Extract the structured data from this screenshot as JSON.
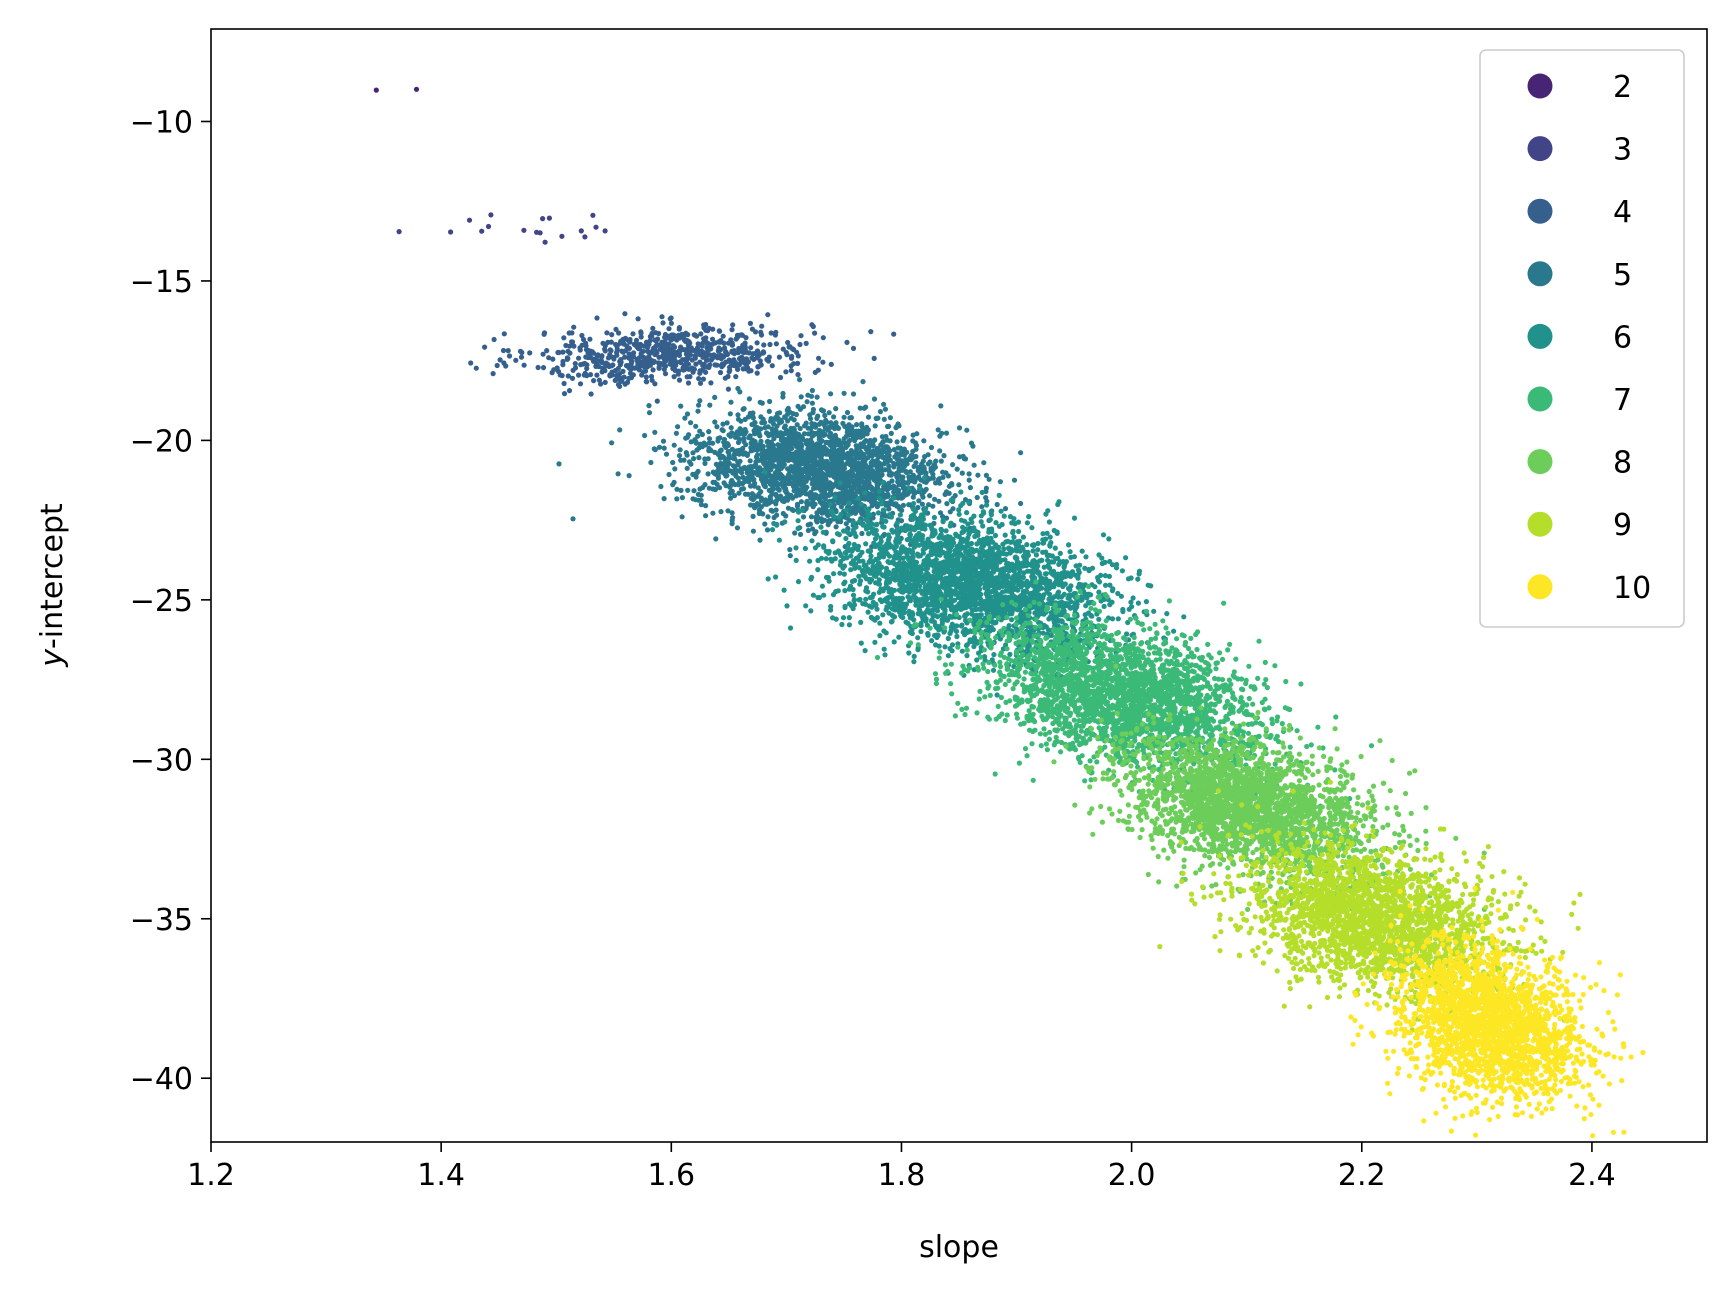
{
  "chart_data": {
    "type": "scatter",
    "title": "",
    "xlabel": "slope",
    "ylabel": "y-intercept",
    "ylabel_italic_part": "y",
    "ylabel_rest": "-intercept",
    "xlim": [
      1.2,
      2.5
    ],
    "ylim": [
      -42,
      -7.1
    ],
    "xticks": [
      1.2,
      1.4,
      1.6,
      1.8,
      2.0,
      2.2,
      2.4
    ],
    "xtick_labels": [
      "1.2",
      "1.4",
      "1.6",
      "1.8",
      "2.0",
      "2.2",
      "2.4"
    ],
    "yticks": [
      -10,
      -15,
      -20,
      -25,
      -30,
      -35,
      -40
    ],
    "ytick_labels": [
      "−10",
      "−15",
      "−20",
      "−25",
      "−30",
      "−35",
      "−40"
    ],
    "grid": false,
    "legend_position": "top-right",
    "series": [
      {
        "name": "2",
        "color": "#482475",
        "cluster": {
          "cx": 1.36,
          "cy": -8.6,
          "sx": 0.02,
          "sy": 0.4,
          "corr": 0,
          "n": 2
        }
      },
      {
        "name": "3",
        "color": "#414487",
        "cluster": {
          "cx": 1.47,
          "cy": -13.3,
          "sx": 0.06,
          "sy": 0.25,
          "corr": 0,
          "n": 18
        }
      },
      {
        "name": "4",
        "color": "#355f8d",
        "cluster": {
          "cx": 1.6,
          "cy": -17.3,
          "sx": 0.06,
          "sy": 0.45,
          "corr": 0.2,
          "n": 700
        }
      },
      {
        "name": "5",
        "color": "#2a788e",
        "cluster": {
          "cx": 1.73,
          "cy": -20.9,
          "sx": 0.055,
          "sy": 0.9,
          "corr": -0.25,
          "n": 2200
        }
      },
      {
        "name": "6",
        "color": "#21918c",
        "cluster": {
          "cx": 1.86,
          "cy": -24.5,
          "sx": 0.06,
          "sy": 1.05,
          "corr": -0.35,
          "n": 2600
        }
      },
      {
        "name": "7",
        "color": "#3aba76",
        "cluster": {
          "cx": 1.99,
          "cy": -28.0,
          "sx": 0.06,
          "sy": 1.1,
          "corr": -0.4,
          "n": 2600
        }
      },
      {
        "name": "8",
        "color": "#6ccd5a",
        "cluster": {
          "cx": 2.1,
          "cy": -31.5,
          "sx": 0.055,
          "sy": 1.1,
          "corr": -0.4,
          "n": 2400
        }
      },
      {
        "name": "9",
        "color": "#b5de2b",
        "cluster": {
          "cx": 2.21,
          "cy": -35.0,
          "sx": 0.055,
          "sy": 1.1,
          "corr": -0.35,
          "n": 2300
        }
      },
      {
        "name": "10",
        "color": "#fde725",
        "cluster": {
          "cx": 2.31,
          "cy": -38.3,
          "sx": 0.04,
          "sy": 1.2,
          "corr": -0.3,
          "n": 2200
        }
      }
    ]
  }
}
